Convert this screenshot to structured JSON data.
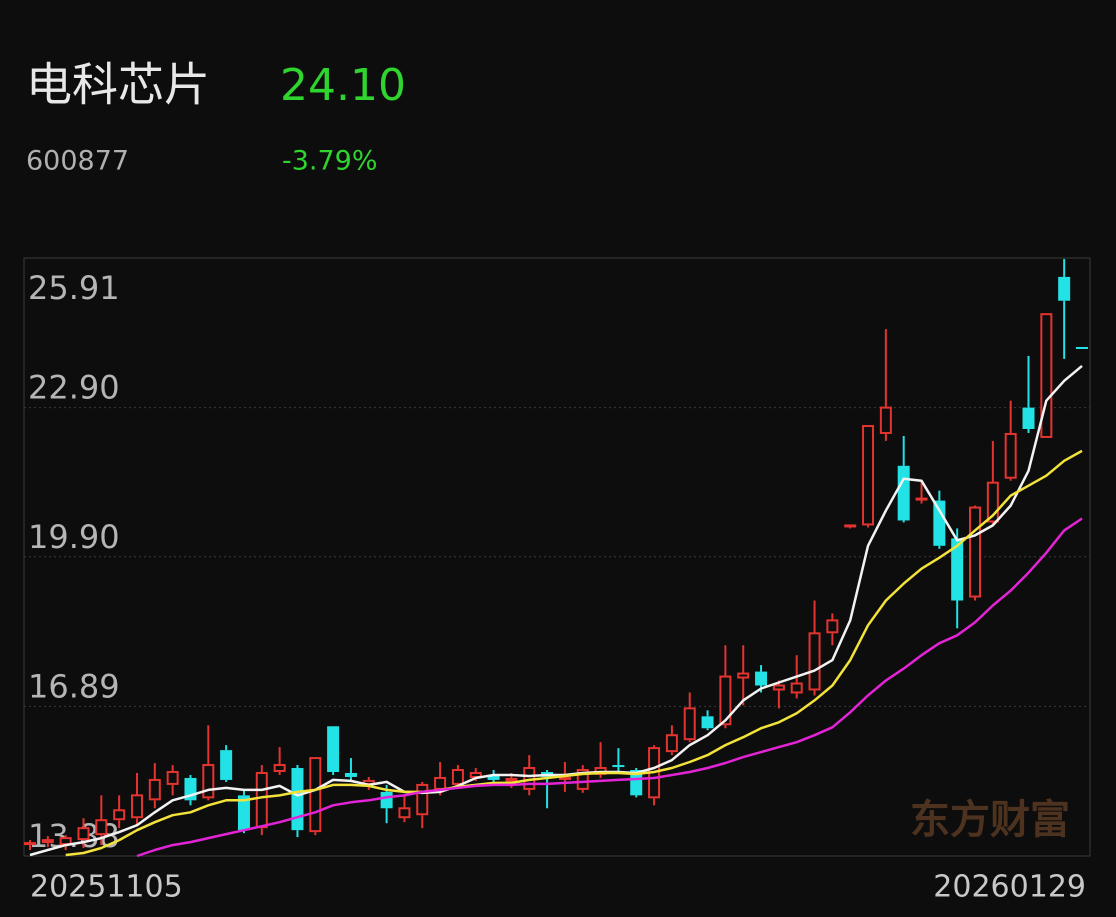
{
  "header": {
    "name": "电科芯片",
    "price": "24.10",
    "code": "600877",
    "change": "-3.79%"
  },
  "chart_data": {
    "type": "candlestick",
    "watermark": "东方财富",
    "categories": [
      "20251105",
      null,
      null,
      null,
      null,
      null,
      null,
      null,
      null,
      null,
      null,
      null,
      null,
      null,
      null,
      null,
      null,
      null,
      null,
      null,
      null,
      null,
      null,
      null,
      null,
      null,
      null,
      null,
      null,
      null,
      null,
      null,
      null,
      null,
      null,
      null,
      null,
      null,
      null,
      null,
      null,
      null,
      null,
      null,
      null,
      null,
      null,
      null,
      null,
      null,
      null,
      null,
      null,
      null,
      null,
      null,
      null,
      null,
      null,
      "20260129"
    ],
    "open": [
      14.1,
      14.14,
      14.1,
      14.2,
      14.3,
      14.6,
      14.64,
      15.0,
      15.31,
      15.45,
      15.04,
      16.01,
      15.1,
      14.44,
      15.57,
      15.65,
      14.36,
      16.49,
      15.55,
      15.31,
      15.17,
      14.64,
      14.7,
      15.21,
      15.31,
      15.45,
      15.51,
      15.37,
      15.21,
      15.57,
      15.41,
      15.21,
      15.51,
      15.71,
      15.61,
      15.04,
      15.97,
      16.21,
      16.69,
      16.51,
      17.45,
      17.59,
      17.21,
      17.15,
      17.21,
      18.36,
      20.49,
      20.53,
      22.37,
      21.73,
      21.03,
      21.03,
      20.27,
      19.08,
      20.59,
      21.47,
      22.9,
      22.29,
      25.53,
      24.12
    ],
    "high": [
      14.2,
      14.28,
      14.3,
      14.64,
      15.1,
      15.1,
      15.55,
      15.75,
      15.71,
      15.51,
      16.51,
      16.11,
      15.21,
      15.71,
      16.07,
      15.71,
      15.85,
      16.49,
      15.85,
      15.47,
      15.31,
      15.1,
      15.37,
      15.77,
      15.71,
      15.65,
      15.61,
      15.55,
      15.91,
      15.61,
      15.77,
      15.71,
      16.17,
      16.05,
      15.65,
      16.11,
      16.51,
      17.17,
      16.81,
      18.12,
      18.12,
      17.72,
      17.41,
      17.92,
      19.02,
      18.76,
      20.55,
      22.53,
      24.48,
      22.33,
      21.43,
      21.23,
      20.47,
      20.93,
      22.23,
      23.04,
      23.94,
      24.78,
      25.89,
      24.12
    ],
    "low": [
      14.0,
      14.06,
      14.0,
      14.04,
      14.1,
      14.44,
      14.5,
      14.84,
      15.1,
      14.9,
      15.0,
      15.37,
      14.34,
      14.3,
      15.51,
      14.26,
      14.3,
      15.51,
      15.41,
      15.21,
      14.54,
      14.56,
      14.44,
      15.1,
      15.25,
      15.39,
      15.37,
      15.25,
      15.1,
      14.84,
      15.17,
      15.15,
      15.45,
      15.57,
      15.06,
      14.9,
      15.91,
      16.17,
      16.41,
      16.45,
      16.91,
      17.17,
      16.85,
      17.05,
      17.11,
      18.12,
      20.47,
      20.49,
      22.23,
      20.59,
      20.97,
      20.06,
      18.46,
      19.02,
      20.53,
      21.43,
      22.39,
      22.29,
      23.88,
      24.08
    ],
    "close": [
      14.14,
      14.2,
      14.24,
      14.44,
      14.6,
      14.8,
      15.1,
      15.41,
      15.57,
      15.0,
      15.71,
      15.41,
      14.4,
      15.55,
      15.71,
      14.4,
      15.85,
      15.57,
      15.47,
      15.39,
      14.84,
      14.84,
      15.31,
      15.45,
      15.61,
      15.55,
      15.41,
      15.43,
      15.65,
      15.47,
      15.45,
      15.61,
      15.65,
      15.67,
      15.1,
      16.05,
      16.31,
      16.85,
      16.45,
      17.49,
      17.55,
      17.31,
      17.31,
      17.35,
      18.36,
      18.62,
      20.53,
      22.53,
      22.9,
      20.63,
      21.07,
      20.12,
      19.02,
      20.89,
      21.39,
      22.37,
      22.47,
      24.78,
      25.05,
      24.1
    ],
    "up_color": "#e3342f",
    "down_color": "#22e2e6",
    "series": [
      {
        "color": "#f2f2f2",
        "values": [
          13.9,
          14.0,
          14.1,
          14.16,
          14.24,
          14.36,
          14.5,
          14.76,
          15.0,
          15.1,
          15.21,
          15.25,
          15.21,
          15.21,
          15.29,
          15.1,
          15.21,
          15.41,
          15.39,
          15.31,
          15.37,
          15.17,
          15.15,
          15.17,
          15.29,
          15.45,
          15.51,
          15.51,
          15.49,
          15.51,
          15.51,
          15.55,
          15.57,
          15.57,
          15.55,
          15.65,
          15.81,
          16.11,
          16.31,
          16.61,
          17.01,
          17.25,
          17.37,
          17.49,
          17.61,
          17.82,
          18.62,
          20.12,
          20.83,
          21.47,
          21.43,
          20.83,
          20.23,
          20.33,
          20.53,
          20.93,
          21.63,
          23.04,
          23.44,
          23.74
        ]
      },
      {
        "color": "#f2e23a",
        "values": [
          null,
          null,
          13.9,
          13.94,
          14.04,
          14.2,
          14.4,
          14.56,
          14.7,
          14.76,
          14.9,
          15.0,
          15.0,
          15.06,
          15.1,
          15.17,
          15.21,
          15.31,
          15.31,
          15.29,
          15.21,
          15.17,
          15.17,
          15.21,
          15.27,
          15.31,
          15.35,
          15.35,
          15.41,
          15.45,
          15.49,
          15.53,
          15.55,
          15.55,
          15.53,
          15.57,
          15.65,
          15.77,
          15.91,
          16.11,
          16.27,
          16.45,
          16.57,
          16.75,
          17.01,
          17.31,
          17.82,
          18.52,
          19.02,
          19.36,
          19.66,
          19.88,
          20.12,
          20.43,
          20.73,
          21.13,
          21.33,
          21.53,
          21.83,
          22.03
        ]
      },
      {
        "color": "#e324d6",
        "values": [
          null,
          null,
          null,
          null,
          null,
          null,
          13.88,
          14.0,
          14.1,
          14.16,
          14.24,
          14.32,
          14.4,
          14.48,
          14.56,
          14.66,
          14.76,
          14.9,
          14.96,
          15.0,
          15.06,
          15.1,
          15.17,
          15.21,
          15.25,
          15.29,
          15.31,
          15.31,
          15.33,
          15.33,
          15.35,
          15.37,
          15.39,
          15.41,
          15.43,
          15.45,
          15.51,
          15.57,
          15.65,
          15.75,
          15.87,
          15.97,
          16.07,
          16.17,
          16.31,
          16.47,
          16.77,
          17.11,
          17.41,
          17.65,
          17.92,
          18.16,
          18.32,
          18.58,
          18.92,
          19.22,
          19.58,
          19.98,
          20.43,
          20.67
        ]
      }
    ],
    "ylim": [
      13.88,
      25.91
    ],
    "yticks": [
      25.91,
      {
        "value": 22.9,
        "label": "22.90"
      },
      {
        "value": 19.9,
        "label": "19.90"
      },
      16.89,
      13.88
    ],
    "grid": true
  }
}
